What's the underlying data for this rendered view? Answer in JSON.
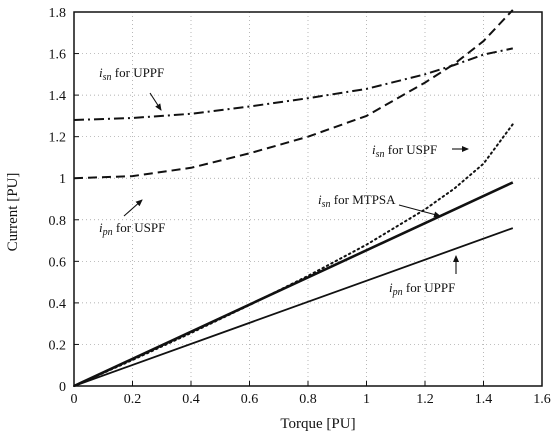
{
  "chart_data": {
    "type": "line",
    "xlabel": "Torque [PU]",
    "ylabel": "Current [PU]",
    "xlim": [
      0,
      1.6
    ],
    "ylim": [
      0,
      1.8
    ],
    "xticks": [
      "0",
      "0.2",
      "0.4",
      "0.6",
      "0.8",
      "1",
      "1.2",
      "1.4",
      "1.6"
    ],
    "yticks": [
      "0",
      "0.2",
      "0.4",
      "0.6",
      "0.8",
      "1",
      "1.2",
      "1.4",
      "1.6",
      "1.8"
    ],
    "grid": true,
    "series": [
      {
        "name": "isn for UPPF",
        "style": "dash-dot",
        "x": [
          0,
          0.2,
          0.4,
          0.6,
          0.8,
          1.0,
          1.2,
          1.3,
          1.4,
          1.5
        ],
        "y": [
          1.28,
          1.29,
          1.31,
          1.345,
          1.385,
          1.43,
          1.5,
          1.545,
          1.595,
          1.625
        ]
      },
      {
        "name": "ipn for USPF",
        "style": "dashed",
        "x": [
          0,
          0.2,
          0.4,
          0.6,
          0.8,
          1.0,
          1.2,
          1.3,
          1.4,
          1.5
        ],
        "y": [
          1.0,
          1.01,
          1.05,
          1.12,
          1.2,
          1.3,
          1.46,
          1.55,
          1.66,
          1.81
        ]
      },
      {
        "name": "isn for USPF",
        "style": "dotted",
        "x": [
          0,
          0.2,
          0.4,
          0.6,
          0.8,
          1.0,
          1.2,
          1.3,
          1.4,
          1.5
        ],
        "y": [
          0,
          0.125,
          0.255,
          0.39,
          0.53,
          0.68,
          0.85,
          0.95,
          1.07,
          1.26
        ]
      },
      {
        "name": "isn for MTPSA",
        "style": "solid-thick",
        "x": [
          0,
          1.5
        ],
        "y": [
          0,
          0.98
        ]
      },
      {
        "name": "ipn for UPPF",
        "style": "solid",
        "x": [
          0,
          1.5
        ],
        "y": [
          0,
          0.76
        ]
      }
    ],
    "annotations": [
      {
        "main": "i",
        "sub": "sn",
        "rest": " for UPPF"
      },
      {
        "main": "i",
        "sub": "pn",
        "rest": " for USPF"
      },
      {
        "main": "i",
        "sub": "sn",
        "rest": " for USPF"
      },
      {
        "main": "i",
        "sub": "sn",
        "rest": " for MTPSA"
      },
      {
        "main": "i",
        "sub": "pn",
        "rest": " for UPPF"
      }
    ]
  }
}
